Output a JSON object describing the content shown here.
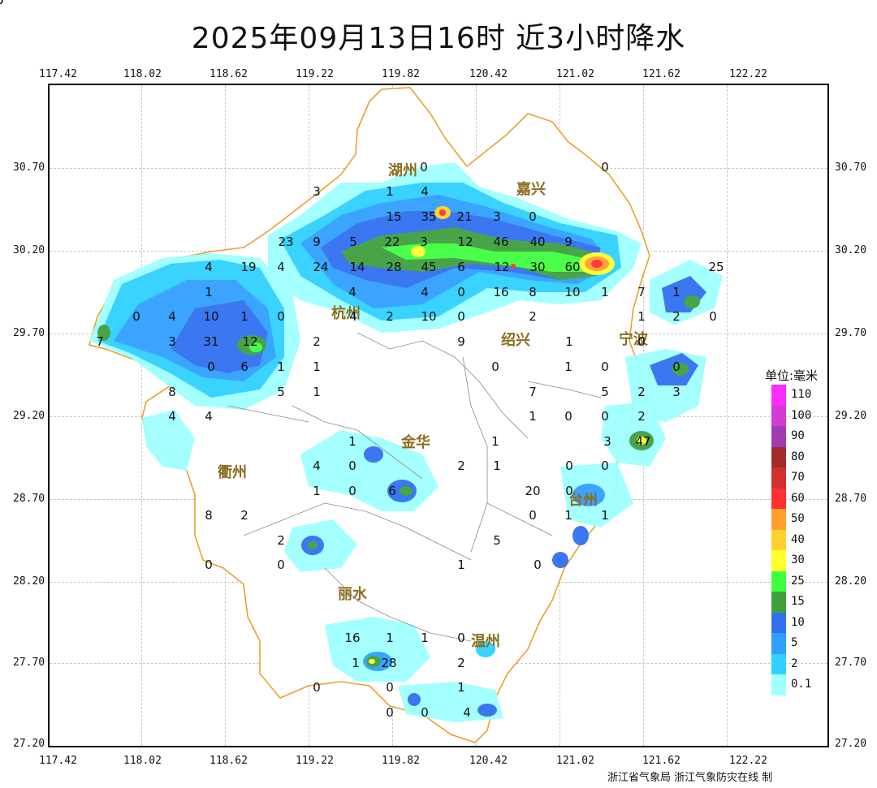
{
  "title": "2025年09月13日16时  近3小时降水",
  "x_ticks": [
    "117.42",
    "118.02",
    "118.62",
    "119.22",
    "119.82",
    "120.42",
    "121.02",
    "121.62",
    "122.22"
  ],
  "y_ticks": [
    "30.70",
    "30.20",
    "29.70",
    "29.20",
    "28.70",
    "28.20",
    "27.70",
    "27.20"
  ],
  "cities": [
    {
      "id": "huzhou",
      "label": "湖州"
    },
    {
      "id": "jiaxing",
      "label": "嘉兴"
    },
    {
      "id": "hangzhou",
      "label": "杭州"
    },
    {
      "id": "shaoxing",
      "label": "绍兴"
    },
    {
      "id": "ningbo",
      "label": "宁波"
    },
    {
      "id": "quzhou",
      "label": "衢州"
    },
    {
      "id": "jinhua",
      "label": "金华"
    },
    {
      "id": "taizhou",
      "label": "台州"
    },
    {
      "id": "lishui",
      "label": "丽水"
    },
    {
      "id": "wenzhou",
      "label": "温州"
    }
  ],
  "station_values": [
    "0",
    "0",
    "3",
    "1",
    "4",
    "15",
    "35",
    "21",
    "3",
    "0",
    "23",
    "9",
    "5",
    "22",
    "3",
    "12",
    "46",
    "40",
    "9",
    "4",
    "19",
    "4",
    "24",
    "14",
    "28",
    "45",
    "6",
    "12",
    "30",
    "60",
    "25",
    "1",
    "4",
    "4",
    "0",
    "16",
    "8",
    "10",
    "1",
    "7",
    "1",
    "0",
    "4",
    "10",
    "1",
    "0",
    "4",
    "2",
    "10",
    "0",
    "2",
    "1",
    "2",
    "0",
    "7",
    "3",
    "31",
    "12",
    "2",
    "9",
    "1",
    "0",
    "0",
    "6",
    "1",
    "1",
    "0",
    "1",
    "0",
    "0",
    "8",
    "5",
    "1",
    "7",
    "5",
    "2",
    "3",
    "4",
    "4",
    "1",
    "0",
    "0",
    "2",
    "1",
    "1",
    "3",
    "47",
    "4",
    "0",
    "2",
    "1",
    "0",
    "0",
    "1",
    "0",
    "6",
    "20",
    "0",
    "8",
    "2",
    "0",
    "1",
    "1",
    "2",
    "5",
    "0",
    "0",
    "1",
    "0",
    "16",
    "1",
    "1",
    "0",
    "1",
    "28",
    "2",
    "0",
    "0",
    "1",
    "0",
    "0",
    "4",
    "5",
    "0"
  ],
  "legend": {
    "title": "单位:毫米",
    "items": [
      {
        "label": "110",
        "color": "#ff2bff"
      },
      {
        "label": "100",
        "color": "#d43bd4"
      },
      {
        "label": "90",
        "color": "#a03cb0"
      },
      {
        "label": "80",
        "color": "#a52a2a"
      },
      {
        "label": "70",
        "color": "#d03030"
      },
      {
        "label": "60",
        "color": "#ff3030"
      },
      {
        "label": "50",
        "color": "#ffa030"
      },
      {
        "label": "40",
        "color": "#ffd030"
      },
      {
        "label": "30",
        "color": "#ffff30"
      },
      {
        "label": "25",
        "color": "#40ff40"
      },
      {
        "label": "15",
        "color": "#40a040"
      },
      {
        "label": "10",
        "color": "#3070f0"
      },
      {
        "label": "5",
        "color": "#30a0ff"
      },
      {
        "label": "2",
        "color": "#30d0ff"
      },
      {
        "label": "0.1",
        "color": "#a0ffff"
      }
    ]
  },
  "credit": "浙江省气象局  浙江气象防灾在线 制",
  "border_color": "#e8a030"
}
